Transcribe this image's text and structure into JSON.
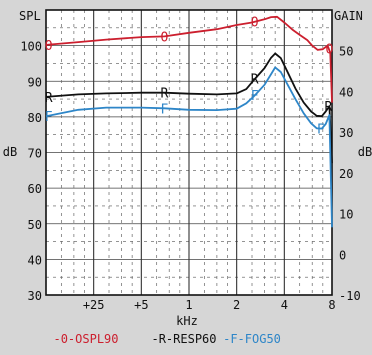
{
  "chart_data": {
    "type": "line",
    "left_axis": {
      "title": "SPL",
      "unit": "dB",
      "range": [
        30,
        110
      ],
      "ticks": [
        {
          "v": 100,
          "t": "100"
        },
        {
          "v": 90,
          "t": "90"
        },
        {
          "v": 80,
          "t": "80"
        },
        {
          "v": 70,
          "t": "70"
        },
        {
          "v": 60,
          "t": "60"
        },
        {
          "v": 50,
          "t": "50"
        },
        {
          "v": 40,
          "t": "40"
        },
        {
          "v": 30,
          "t": "30"
        }
      ]
    },
    "right_axis": {
      "title": "GAIN",
      "unit": "dB",
      "range": [
        -10,
        60
      ],
      "ticks": [
        {
          "v": 50,
          "t": "50"
        },
        {
          "v": 40,
          "t": "40"
        },
        {
          "v": 30,
          "t": "30"
        },
        {
          "v": 20,
          "t": "20"
        },
        {
          "v": 10,
          "t": "10"
        },
        {
          "v": 0,
          "t": "0"
        },
        {
          "v": -10,
          "t": "-10"
        }
      ]
    },
    "x_axis": {
      "title": "kHz",
      "range": [
        0.125,
        8
      ],
      "ticks": [
        {
          "v": 0.25,
          "t": "+25"
        },
        {
          "v": 0.5,
          "t": "+5"
        },
        {
          "v": 1,
          "t": "1"
        },
        {
          "v": 2,
          "t": "2"
        },
        {
          "v": 4,
          "t": "4"
        },
        {
          "v": 8,
          "t": "8"
        }
      ]
    },
    "grid": true,
    "series": [
      {
        "name": "-0-OSPL90",
        "marker": "O",
        "color": "#cc1f2e",
        "axis": "left",
        "points": [
          [
            0.125,
            100.2
          ],
          [
            0.2,
            101.0
          ],
          [
            0.3,
            101.7
          ],
          [
            0.5,
            102.4
          ],
          [
            0.7,
            102.6
          ],
          [
            1.0,
            103.6
          ],
          [
            1.5,
            104.6
          ],
          [
            2.0,
            105.8
          ],
          [
            2.5,
            106.5
          ],
          [
            3.0,
            107.4
          ],
          [
            3.3,
            108.0
          ],
          [
            3.6,
            108.1
          ],
          [
            4.0,
            106.5
          ],
          [
            4.5,
            104.5
          ],
          [
            5.0,
            103.0
          ],
          [
            5.6,
            101.5
          ],
          [
            6.0,
            100.0
          ],
          [
            6.5,
            98.8
          ],
          [
            7.0,
            99.0
          ],
          [
            7.5,
            100.0
          ],
          [
            7.8,
            98.0
          ],
          [
            8.0,
            84.0
          ]
        ],
        "marker_points": [
          [
            0.13,
            100.2
          ],
          [
            0.7,
            102.6
          ],
          [
            2.6,
            106.8
          ],
          [
            7.7,
            99.2
          ]
        ]
      },
      {
        "name": "-R-RESP60",
        "marker": "R",
        "color": "#111111",
        "axis": "left",
        "points": [
          [
            0.125,
            85.6
          ],
          [
            0.2,
            86.3
          ],
          [
            0.3,
            86.6
          ],
          [
            0.5,
            86.8
          ],
          [
            0.7,
            86.8
          ],
          [
            1.0,
            86.5
          ],
          [
            1.5,
            86.3
          ],
          [
            2.0,
            86.6
          ],
          [
            2.3,
            87.8
          ],
          [
            2.6,
            90.6
          ],
          [
            3.0,
            93.7
          ],
          [
            3.3,
            96.6
          ],
          [
            3.5,
            97.8
          ],
          [
            3.8,
            96.5
          ],
          [
            4.2,
            92.5
          ],
          [
            4.7,
            88.0
          ],
          [
            5.3,
            84.0
          ],
          [
            5.9,
            81.5
          ],
          [
            6.4,
            80.3
          ],
          [
            6.9,
            80.2
          ],
          [
            7.3,
            81.5
          ],
          [
            7.7,
            83.0
          ],
          [
            8.0,
            67.0
          ]
        ],
        "marker_points": [
          [
            0.13,
            85.6
          ],
          [
            0.7,
            86.8
          ],
          [
            2.6,
            90.8
          ],
          [
            7.6,
            83.0
          ]
        ]
      },
      {
        "name": "-F-FOG50",
        "marker": "F",
        "color": "#2e86c8",
        "axis": "left",
        "points": [
          [
            0.125,
            80.2
          ],
          [
            0.2,
            82.0
          ],
          [
            0.3,
            82.6
          ],
          [
            0.5,
            82.6
          ],
          [
            0.7,
            82.4
          ],
          [
            1.0,
            82.0
          ],
          [
            1.5,
            81.9
          ],
          [
            2.0,
            82.3
          ],
          [
            2.3,
            83.8
          ],
          [
            2.6,
            86.0
          ],
          [
            3.0,
            89.0
          ],
          [
            3.3,
            92.0
          ],
          [
            3.5,
            93.9
          ],
          [
            3.8,
            92.6
          ],
          [
            4.2,
            89.0
          ],
          [
            4.7,
            85.0
          ],
          [
            5.3,
            81.0
          ],
          [
            5.9,
            78.2
          ],
          [
            6.4,
            76.8
          ],
          [
            6.9,
            76.7
          ],
          [
            7.3,
            78.0
          ],
          [
            7.7,
            80.5
          ],
          [
            8.0,
            49.0
          ]
        ],
        "marker_points": [
          [
            0.13,
            80.2
          ],
          [
            0.7,
            82.4
          ],
          [
            2.6,
            86.2
          ],
          [
            6.8,
            76.8
          ]
        ]
      }
    ]
  }
}
